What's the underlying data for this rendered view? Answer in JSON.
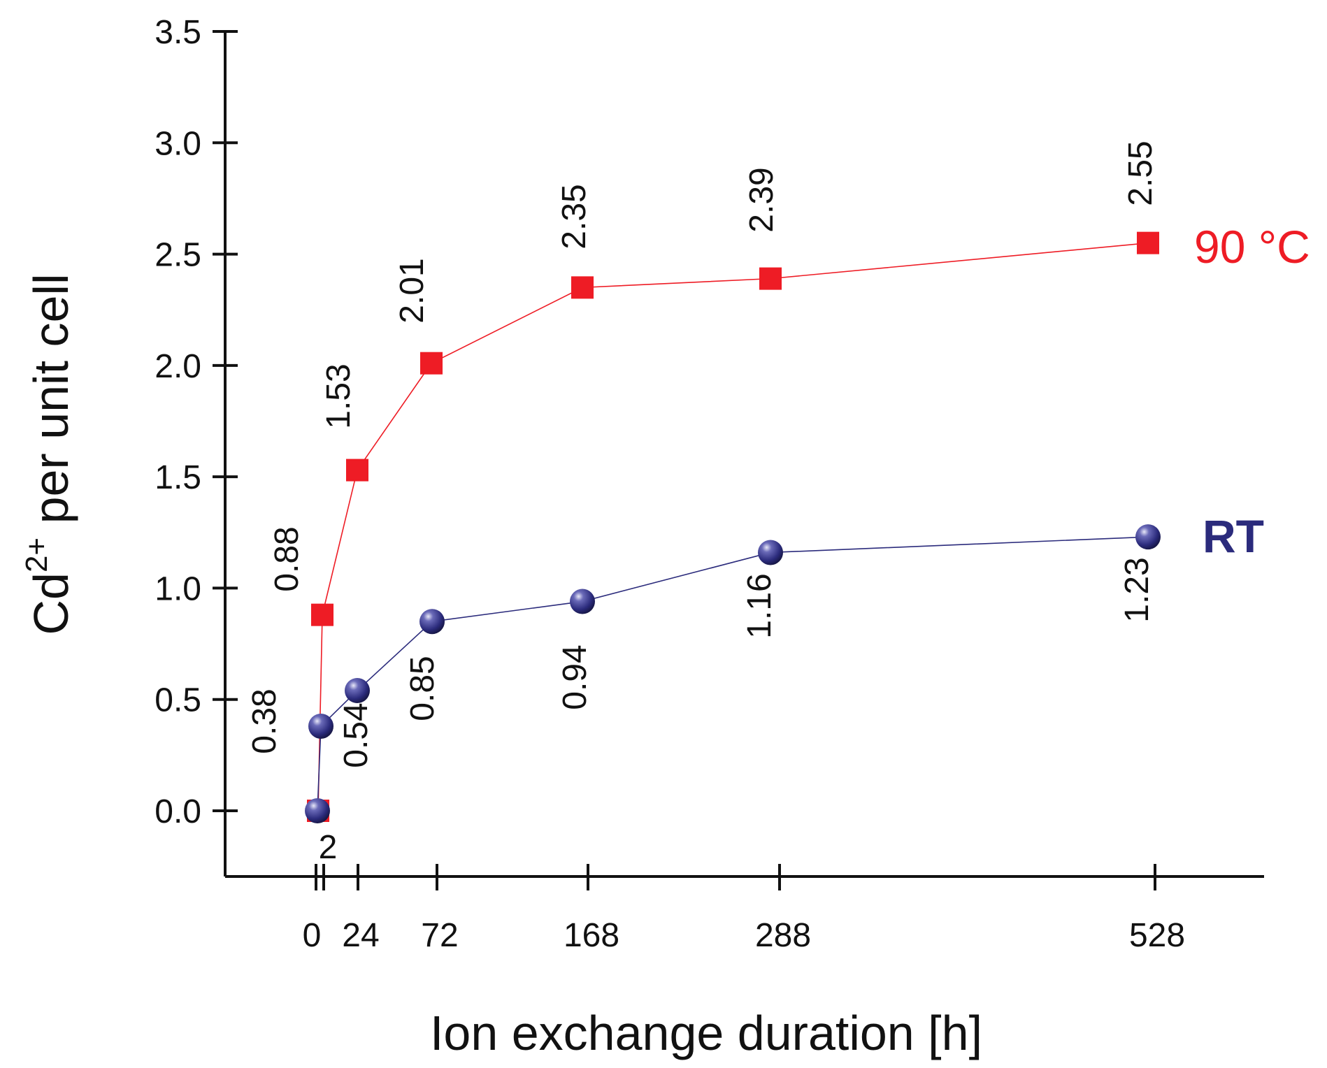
{
  "chart_data": {
    "type": "line",
    "title": "",
    "xlabel": "Ion exchange duration [h]",
    "ylabel_main": "Cd",
    "ylabel_sup": "2+",
    "ylabel_rest": " per unit cell",
    "ylim": [
      -0.3,
      3.5
    ],
    "x": [
      0,
      2,
      24,
      72,
      168,
      288,
      528
    ],
    "x_tick_labels": [
      "0",
      "2",
      "24",
      "72",
      "168",
      "288",
      "528"
    ],
    "y_ticks": [
      0.0,
      0.5,
      1.0,
      1.5,
      2.0,
      2.5,
      3.0,
      3.5
    ],
    "y_tick_labels": [
      "0.0",
      "0.5",
      "1.0",
      "1.5",
      "2.0",
      "2.5",
      "3.0",
      "3.5"
    ],
    "grid": false,
    "series": [
      {
        "name": "90 °C",
        "color": "#ee1c25",
        "marker": "square",
        "values": [
          0.0,
          0.88,
          1.53,
          2.01,
          2.35,
          2.39,
          2.55
        ],
        "data_labels": [
          "",
          "0.88",
          "1.53",
          "2.01",
          "2.35",
          "2.39",
          "2.55"
        ]
      },
      {
        "name": "RT",
        "color": "#2b2b7c",
        "marker": "sphere",
        "values": [
          0.0,
          0.38,
          0.54,
          0.85,
          0.94,
          1.16,
          1.23
        ],
        "data_labels": [
          "",
          "0.38",
          "0.54",
          "0.85",
          "0.94",
          "1.16",
          "1.23"
        ]
      }
    ]
  }
}
